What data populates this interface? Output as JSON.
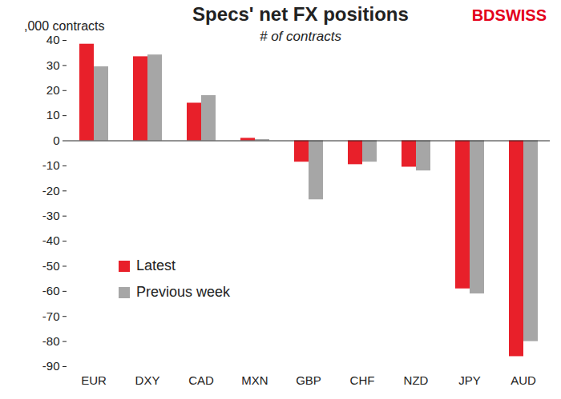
{
  "chart_data": {
    "type": "bar",
    "title": "Specs' net FX positions",
    "subtitle": "# of contracts",
    "y_label": ",000 contracts",
    "annotations": [
      "BDSWISS"
    ],
    "categories": [
      "EUR",
      "DXY",
      "CAD",
      "MXN",
      "GBP",
      "CHF",
      "NZD",
      "JPY",
      "AUD"
    ],
    "series": [
      {
        "name": "Latest",
        "color": "#e8202a",
        "values": [
          38.5,
          33.5,
          15,
          1,
          -8.5,
          -9.5,
          -10.5,
          -59,
          -86
        ]
      },
      {
        "name": "Previous week",
        "color": "#a6a6a6",
        "values": [
          29.5,
          34.2,
          18,
          0.5,
          -23.5,
          -8.5,
          -12,
          -61,
          -80
        ]
      }
    ],
    "ylim": [
      -90,
      40
    ],
    "yticks": [
      -90,
      -80,
      -70,
      -60,
      -50,
      -40,
      -30,
      -20,
      -10,
      0,
      10,
      20,
      30,
      40
    ],
    "grid": false,
    "legend": "left"
  }
}
